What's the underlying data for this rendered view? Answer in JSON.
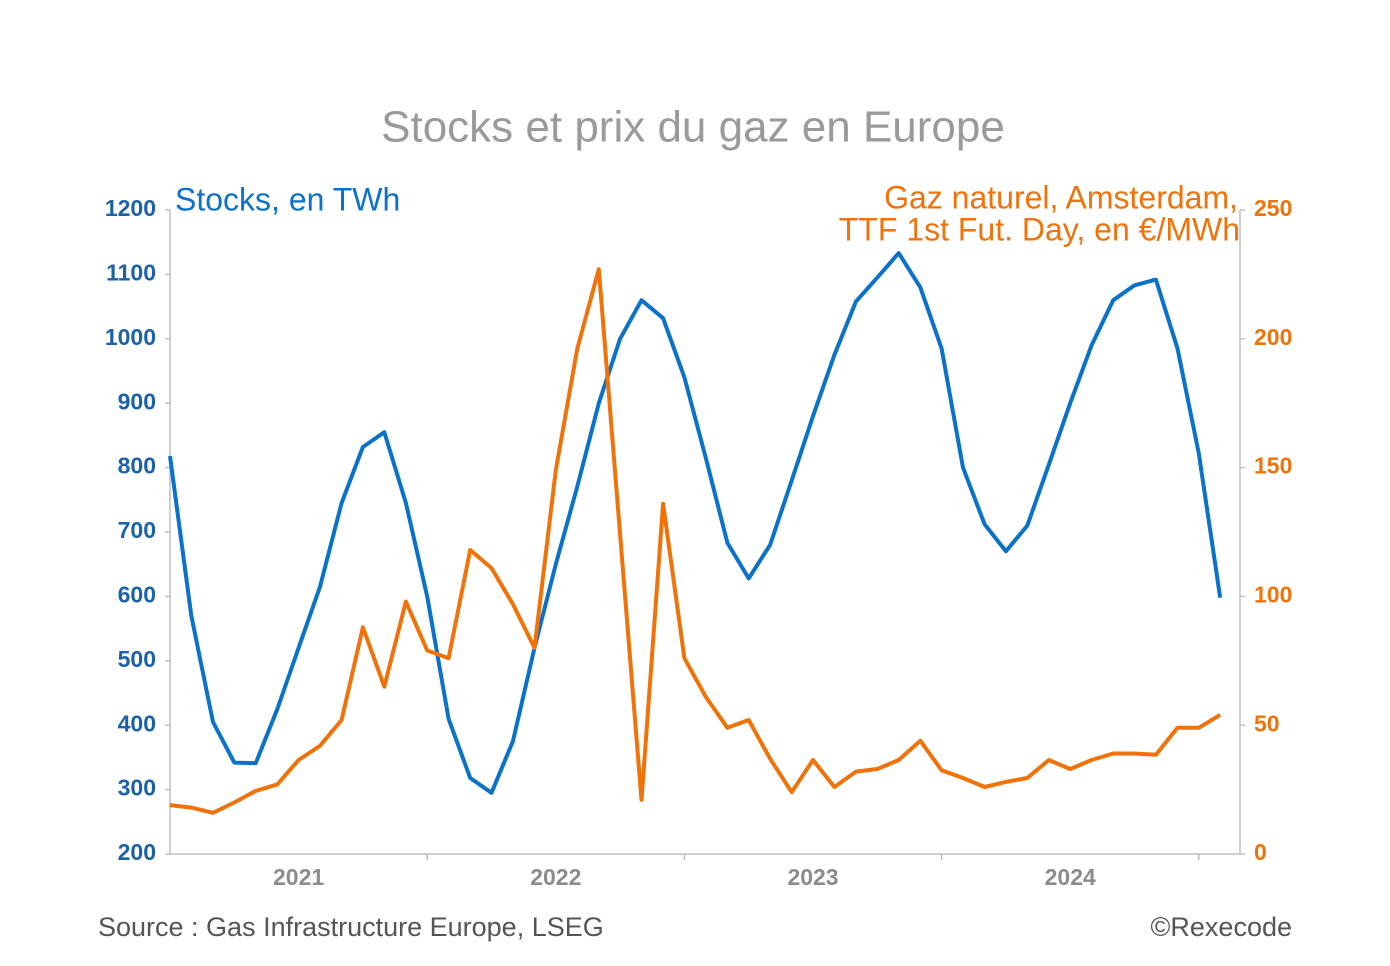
{
  "chart_data": {
    "type": "line",
    "title": "Stocks et prix du gaz en Europe",
    "ylabel": "Stocks, en TWh",
    "y2label": [
      "Gaz naturel, Amsterdam,",
      "TTF 1st Fut. Day, en €/MWh"
    ],
    "source": "Source : Gas Infrastructure Europe, LSEG",
    "credit": "©Rexecode",
    "x": [
      2021,
      2021.083,
      2021.167,
      2021.25,
      2021.333,
      2021.417,
      2021.5,
      2021.583,
      2021.667,
      2021.75,
      2021.833,
      2021.917,
      2022,
      2022.083,
      2022.167,
      2022.25,
      2022.333,
      2022.417,
      2022.5,
      2022.583,
      2022.667,
      2022.75,
      2022.833,
      2022.917,
      2023,
      2023.083,
      2023.167,
      2023.25,
      2023.333,
      2023.417,
      2023.5,
      2023.583,
      2023.667,
      2023.75,
      2023.833,
      2023.917,
      2024,
      2024.083,
      2024.167,
      2024.25,
      2024.333,
      2024.417,
      2024.5,
      2024.583,
      2024.667,
      2024.75,
      2024.833,
      2024.917,
      2025,
      2025.083
    ],
    "xlim": [
      2021,
      2025.16
    ],
    "xticks": [
      {
        "value": 2021.5,
        "label": "2021"
      },
      {
        "value": 2022.5,
        "label": "2022"
      },
      {
        "value": 2023.5,
        "label": "2023"
      },
      {
        "value": 2024.5,
        "label": "2024"
      }
    ],
    "xminor": [
      2022,
      2023,
      2024,
      2025
    ],
    "ylim": [
      200,
      1200
    ],
    "yticks": [
      200,
      300,
      400,
      500,
      600,
      700,
      800,
      900,
      1000,
      1100,
      1200
    ],
    "y2lim": [
      0,
      250
    ],
    "y2ticks": [
      0,
      50,
      100,
      150,
      200,
      250
    ],
    "series": [
      {
        "color": "#0a72c8",
        "values": [
          818,
          570,
          405,
          342,
          341,
          425,
          520,
          615,
          745,
          832,
          855,
          745,
          600,
          410,
          318,
          295,
          375,
          520,
          650,
          770,
          900,
          1000,
          1060,
          1032,
          940,
          815,
          683,
          628,
          680,
          780,
          880,
          975,
          1058,
          1095,
          1133,
          1080,
          985,
          800,
          712,
          670,
          710,
          805,
          900,
          990,
          1060,
          1083,
          1092,
          985,
          822,
          598
        ]
      },
      {
        "color": "#f07209",
        "axis": "y2",
        "values": [
          19,
          18,
          16,
          20,
          24.5,
          27,
          36.5,
          42,
          52,
          88,
          65,
          98,
          79,
          76,
          118,
          111,
          97,
          80,
          149,
          196,
          227,
          124,
          21,
          136,
          76,
          61,
          49,
          52,
          37,
          24,
          36.5,
          26,
          32,
          33,
          36.5,
          44,
          32.5,
          29.5,
          26,
          28,
          29.5,
          36.5,
          33,
          36.5,
          39,
          39,
          38.5,
          49,
          49,
          54
        ]
      }
    ]
  }
}
